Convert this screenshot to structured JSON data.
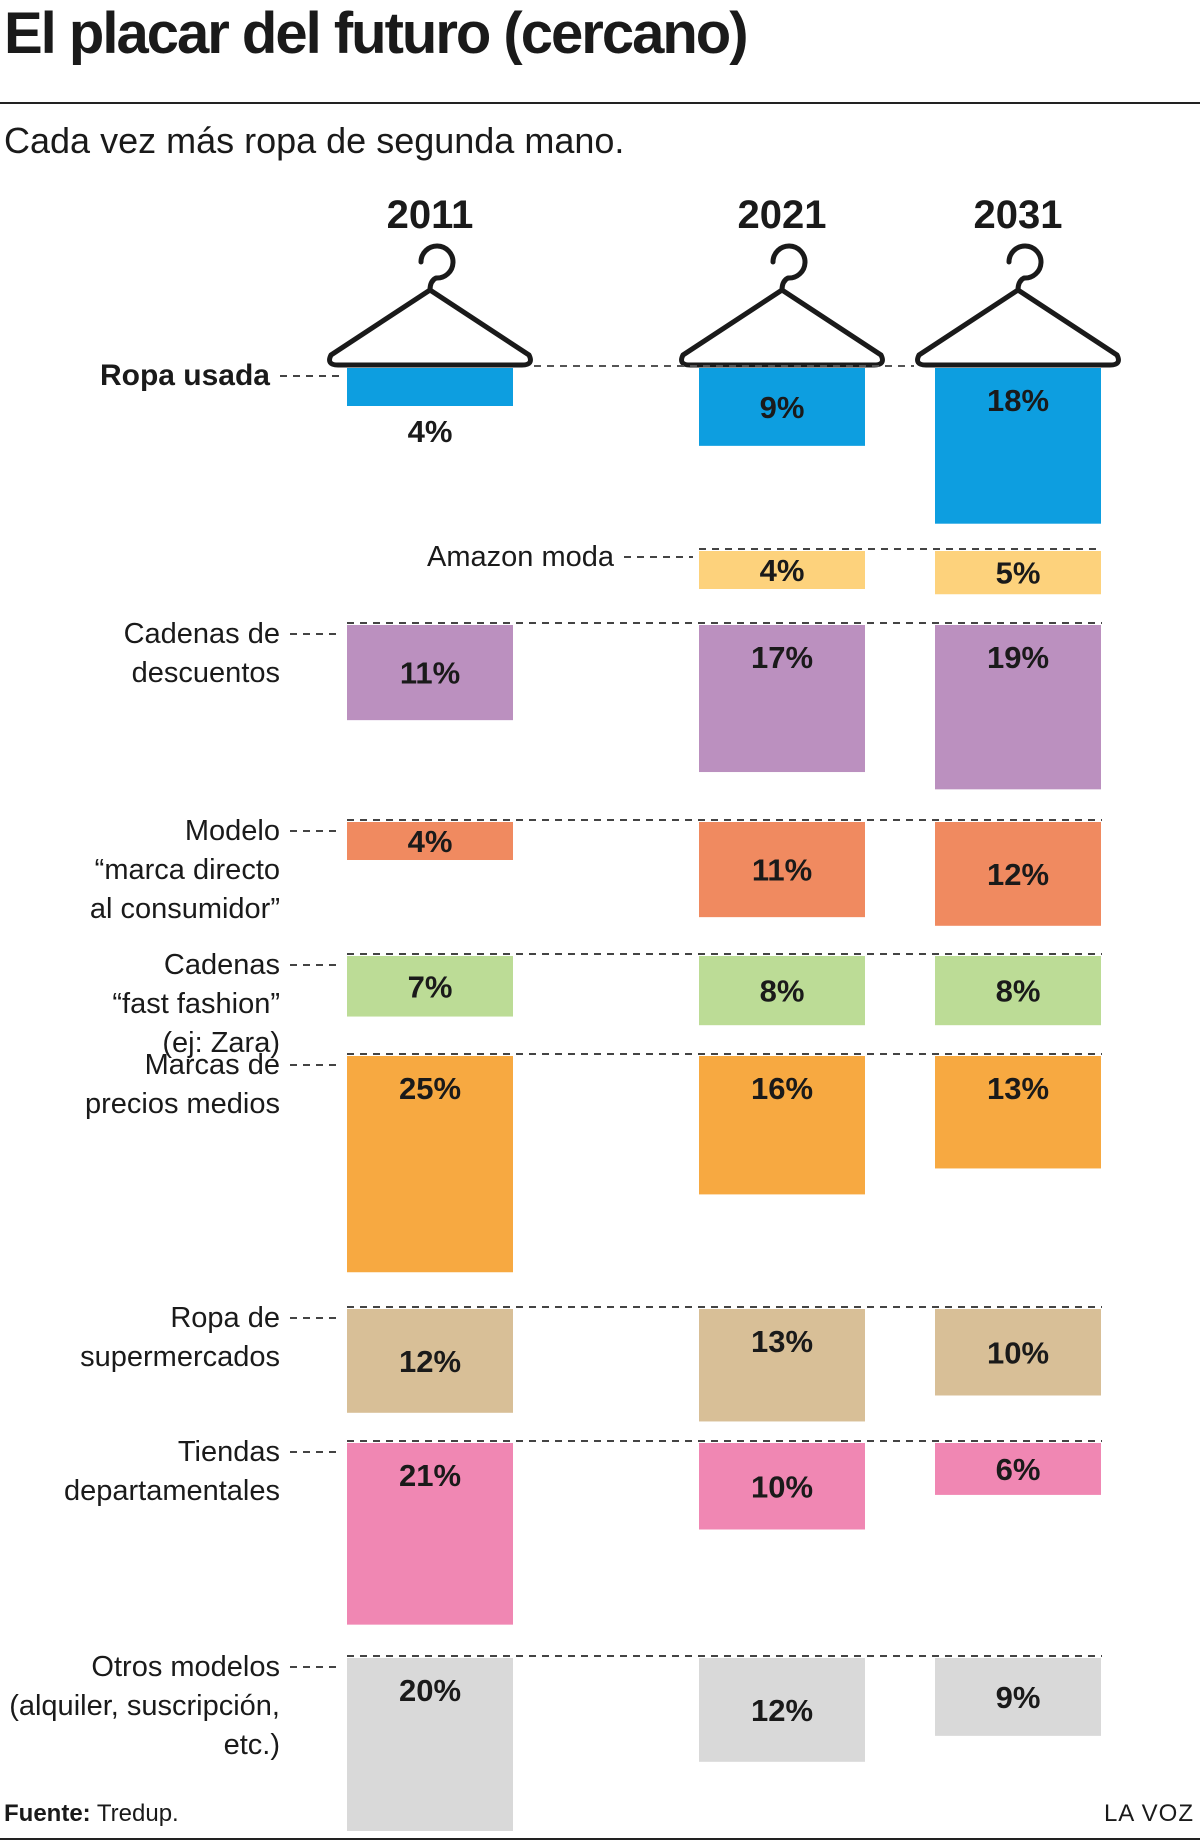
{
  "header": {
    "title": "El placar del futuro (cercano)",
    "subtitle": "Cada vez más ropa de segunda mano."
  },
  "footer": {
    "source_label": "Fuente:",
    "source_value": "Tredup.",
    "brand": "LA VOZ"
  },
  "icons": {
    "year_marker": "clothes-hanger-icon"
  },
  "chart_data": {
    "type": "bar",
    "title": "El placar del futuro (cercano)",
    "subtitle": "Cada vez más ropa de segunda mano.",
    "unit": "%",
    "categories": [
      "2011",
      "2021",
      "2031"
    ],
    "series": [
      {
        "name": "Ropa usada",
        "label_lines": [
          "Ropa usada"
        ],
        "bold": true,
        "color": "#0d9ee0",
        "values": [
          4,
          9,
          18
        ]
      },
      {
        "name": "Amazon moda",
        "label_lines": [
          "Amazon moda"
        ],
        "color": "#fdd27c",
        "values": [
          null,
          4,
          5
        ]
      },
      {
        "name": "Cadenas de descuentos",
        "label_lines": [
          "Cadenas de",
          "descuentos"
        ],
        "color": "#bb90bf",
        "values": [
          11,
          17,
          19
        ]
      },
      {
        "name": "Modelo “marca directo al consumidor”",
        "label_lines": [
          "Modelo",
          "“marca directo",
          "al consumidor”"
        ],
        "color": "#f08a60",
        "values": [
          4,
          11,
          12
        ]
      },
      {
        "name": "Cadenas “fast fashion” (ej: Zara)",
        "label_lines": [
          "Cadenas",
          "“fast fashion”",
          "(ej: Zara)"
        ],
        "color": "#bcdc96",
        "values": [
          7,
          8,
          8
        ]
      },
      {
        "name": "Marcas de precios medios",
        "label_lines": [
          "Marcas de",
          "precios medios"
        ],
        "color": "#f7a941",
        "values": [
          25,
          16,
          13
        ]
      },
      {
        "name": "Ropa de supermercados",
        "label_lines": [
          "Ropa de",
          "supermercados"
        ],
        "color": "#d8bf97",
        "values": [
          12,
          13,
          10
        ]
      },
      {
        "name": "Tiendas departamentales",
        "label_lines": [
          "Tiendas",
          "departamentales"
        ],
        "color": "#f087b3",
        "values": [
          21,
          10,
          6
        ]
      },
      {
        "name": "Otros modelos (alquiler, suscripción, etc.)",
        "label_lines": [
          "Otros modelos",
          "(alquiler, suscripción,",
          "etc.)"
        ],
        "color": "#d9d9d9",
        "values": [
          20,
          12,
          9
        ]
      }
    ]
  }
}
